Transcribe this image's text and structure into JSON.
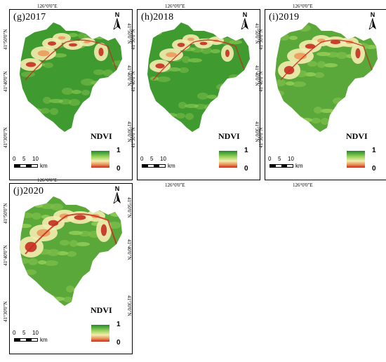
{
  "legend": {
    "title": "NDVI",
    "max_label": "1",
    "min_label": "0",
    "colors": [
      "#1f8a2a",
      "#9ad35a",
      "#f4ecb0",
      "#ec9a5c",
      "#c62d22"
    ]
  },
  "north_label": "N",
  "scale": {
    "ticks": [
      "0",
      "5",
      "10"
    ],
    "unit": "km"
  },
  "lon_label": "126°0'0\"E",
  "lat_labels": [
    "41°50'0\"N",
    "41°40'0\"N",
    "41°30'0\"N"
  ],
  "panels": [
    {
      "title": "(g)2017"
    },
    {
      "title": "(h)2018"
    },
    {
      "title": "(i)2019"
    },
    {
      "title": "(j)2020"
    }
  ]
}
